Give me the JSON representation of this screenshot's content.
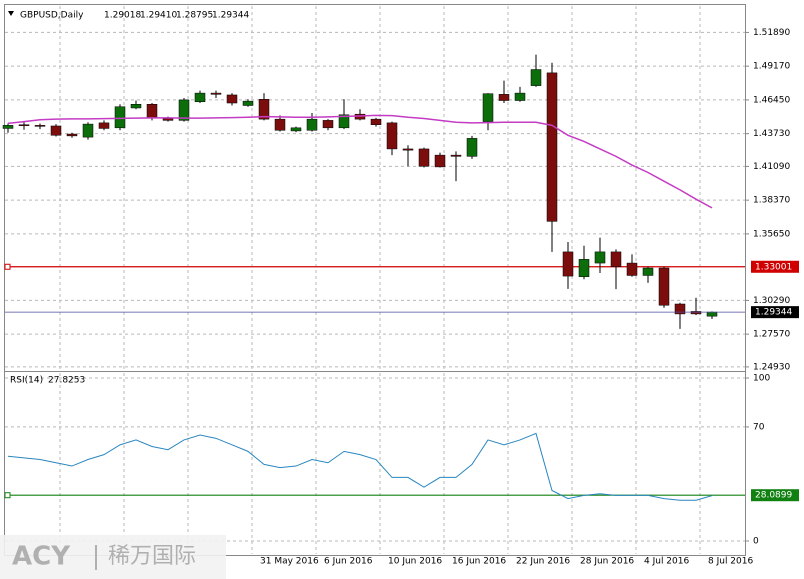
{
  "chart_data": [
    {
      "type": "candlestick",
      "title": "GBPUSD,Daily",
      "header": {
        "open": "1.29018",
        "high": "1.29410",
        "low": "1.28795",
        "close": "1.29344"
      },
      "x": [
        null,
        null,
        null,
        null,
        null,
        null,
        null,
        null,
        null,
        null,
        null,
        null,
        null,
        null,
        null,
        null,
        "31 May 2016",
        null,
        null,
        null,
        "6 Jun 2016",
        null,
        null,
        null,
        "10 Jun 2016",
        null,
        null,
        null,
        "16 Jun 2016",
        null,
        null,
        null,
        "22 Jun 2016",
        null,
        null,
        null,
        "28 Jun 2016",
        null,
        null,
        null,
        "4 Jul 2016",
        null,
        null,
        null,
        "8 Jul 2016"
      ],
      "open": [
        1.4415,
        1.4445,
        1.444,
        1.4435,
        1.437,
        1.4345,
        1.446,
        1.442,
        1.458,
        1.461,
        1.4495,
        1.448,
        1.463,
        1.47,
        1.4685,
        1.46,
        1.465,
        1.449,
        1.4395,
        1.44,
        1.448,
        1.442,
        1.453,
        1.449,
        1.446,
        1.425,
        1.425,
        1.42,
        1.42,
        1.419,
        1.447,
        1.469,
        1.464,
        1.476,
        1.4863,
        1.342,
        1.322,
        1.333,
        1.342,
        1.333,
        1.323,
        1.329,
        1.3,
        1.294,
        1.29018
      ],
      "high": [
        1.4455,
        1.447,
        1.4455,
        1.445,
        1.438,
        1.4465,
        1.448,
        1.461,
        1.464,
        1.462,
        1.451,
        1.466,
        1.472,
        1.472,
        1.47,
        1.465,
        1.47,
        1.452,
        1.443,
        1.454,
        1.449,
        1.465,
        1.457,
        1.45,
        1.447,
        1.428,
        1.426,
        1.422,
        1.423,
        1.4355,
        1.47,
        1.48,
        1.475,
        1.501,
        1.4945,
        1.35,
        1.347,
        1.3535,
        1.344,
        1.34,
        1.33,
        1.33,
        1.301,
        1.305,
        1.2941
      ],
      "low": [
        1.438,
        1.4405,
        1.441,
        1.435,
        1.434,
        1.4325,
        1.44,
        1.44,
        1.457,
        1.448,
        1.447,
        1.447,
        1.462,
        1.466,
        1.46,
        1.459,
        1.448,
        1.439,
        1.4385,
        1.439,
        1.44,
        1.441,
        1.448,
        1.443,
        1.42,
        1.411,
        1.41,
        1.41,
        1.399,
        1.417,
        1.44,
        1.462,
        1.463,
        1.475,
        1.342,
        1.3122,
        1.32,
        1.325,
        1.312,
        1.322,
        1.317,
        1.297,
        1.28,
        1.291,
        1.28795
      ],
      "close": [
        1.444,
        1.444,
        1.4435,
        1.436,
        1.4355,
        1.445,
        1.4415,
        1.459,
        1.461,
        1.45,
        1.448,
        1.4645,
        1.47,
        1.469,
        1.462,
        1.4635,
        1.449,
        1.44,
        1.442,
        1.449,
        1.442,
        1.4525,
        1.449,
        1.4445,
        1.425,
        1.424,
        1.411,
        1.4105,
        1.419,
        1.4335,
        1.4695,
        1.464,
        1.47,
        1.489,
        1.3666,
        1.3225,
        1.336,
        1.342,
        1.33,
        1.323,
        1.329,
        1.299,
        1.292,
        1.292,
        1.29344
      ],
      "up_color": "#0b6e0b",
      "down_color": "#7b0d0d",
      "ma": {
        "color": "#c43bc4",
        "values": [
          1.4456,
          1.447,
          1.4485,
          1.449,
          1.4492,
          1.4492,
          1.4494,
          1.4496,
          1.4498,
          1.45,
          1.45,
          1.4498,
          1.4498,
          1.45,
          1.4502,
          1.4505,
          1.451,
          1.4508,
          1.4505,
          1.4505,
          1.4508,
          1.4512,
          1.4515,
          1.452,
          1.4518,
          1.4505,
          1.4495,
          1.448,
          1.4465,
          1.446,
          1.4462,
          1.4465,
          1.4465,
          1.4465,
          1.444,
          1.436,
          1.431,
          1.425,
          1.419,
          1.412,
          1.406,
          1.399,
          1.392,
          1.3845,
          1.3775
        ]
      },
      "levels": [
        {
          "value": 1.33001,
          "color": "#d00000"
        }
      ],
      "last_price_color": "#4a4a9a",
      "ylim": [
        1.246,
        1.541
      ],
      "yticks": [
        {
          "value": 1.5189,
          "label": "1.51890"
        },
        {
          "value": 1.4917,
          "label": "1.49170"
        },
        {
          "value": 1.4645,
          "label": "1.46450"
        },
        {
          "value": 1.4373,
          "label": "1.43730"
        },
        {
          "value": 1.4109,
          "label": "1.41090"
        },
        {
          "value": 1.3837,
          "label": "1.38370"
        },
        {
          "value": 1.3565,
          "label": "1.35650"
        },
        {
          "value": 1.3029,
          "label": "1.30290"
        },
        {
          "value": 1.2757,
          "label": "1.27570"
        },
        {
          "value": 1.2493,
          "label": "1.24930"
        }
      ],
      "grid": true
    },
    {
      "type": "line",
      "title": "RSI(14)",
      "values": [
        52,
        51,
        50,
        48,
        46,
        50,
        53,
        59,
        62,
        58,
        56,
        62,
        65,
        63,
        59,
        55,
        47,
        45,
        46,
        50,
        48,
        55,
        53,
        50,
        39,
        39,
        33,
        39,
        39,
        47,
        62,
        59,
        62,
        66,
        31,
        26,
        28,
        29,
        28,
        28,
        28,
        26,
        25,
        25,
        27.8253
      ],
      "color": "#2a86c0",
      "levels": [
        {
          "value": 28.0899,
          "color": "#108010"
        }
      ],
      "ylim": [
        -8.6,
        103.7
      ],
      "yticks": [
        100,
        70,
        0
      ],
      "grid": true
    }
  ],
  "watermark": {
    "brand": "ACY",
    "name": "稀万国际"
  }
}
